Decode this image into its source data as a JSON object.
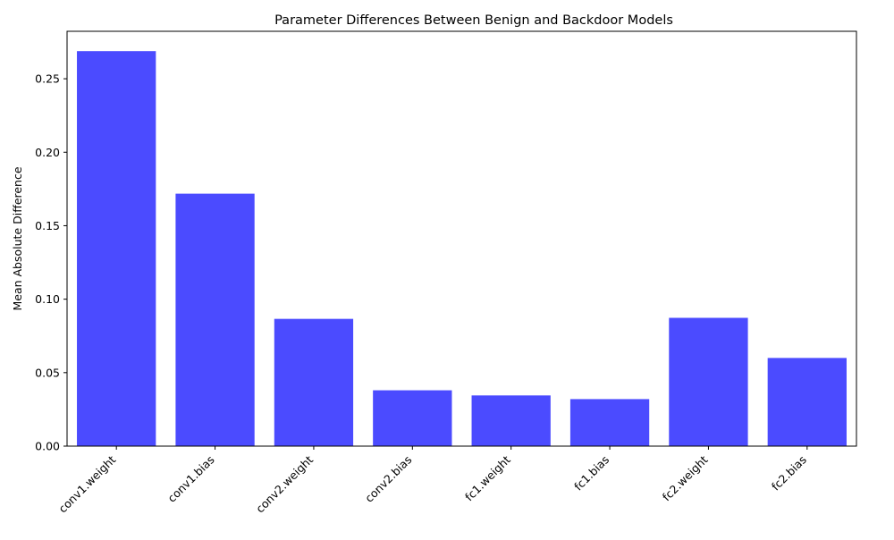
{
  "chart_data": {
    "type": "bar",
    "title": "Parameter Differences Between Benign and Backdoor Models",
    "xlabel": "",
    "ylabel": "Mean Absolute Difference",
    "categories": [
      "conv1.weight",
      "conv1.bias",
      "conv2.weight",
      "conv2.bias",
      "fc1.weight",
      "fc1.bias",
      "fc2.weight",
      "fc2.bias"
    ],
    "values": [
      0.2688,
      0.1718,
      0.0866,
      0.038,
      0.0345,
      0.032,
      0.0873,
      0.06
    ],
    "ylim": [
      0,
      0.2823
    ],
    "yticks": [
      "0.00",
      "0.05",
      "0.10",
      "0.15",
      "0.20",
      "0.25"
    ],
    "bar_color": "#4b4bff",
    "grid": false
  }
}
